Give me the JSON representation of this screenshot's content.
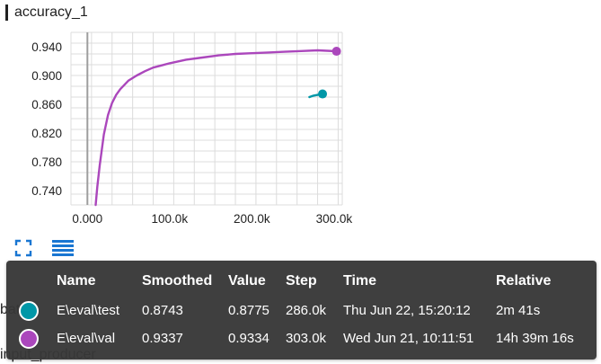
{
  "card": {
    "title": "accuracy_1"
  },
  "chart_data": {
    "type": "line",
    "x_ticks": [
      "0.000",
      "100.0k",
      "200.0k",
      "300.0k"
    ],
    "y_ticks": [
      "0.740",
      "0.780",
      "0.820",
      "0.860",
      "0.900",
      "0.940"
    ],
    "xlim": [
      -20000,
      310000
    ],
    "ylim": [
      0.72,
      0.96
    ],
    "grid": true,
    "cursor_x": 0,
    "series": [
      {
        "name": "E\\eval\\val",
        "color": "#ab47bc",
        "x": [
          10000,
          12000,
          15000,
          20000,
          25000,
          30000,
          35000,
          40000,
          50000,
          60000,
          70000,
          80000,
          90000,
          100000,
          120000,
          140000,
          160000,
          180000,
          200000,
          220000,
          240000,
          260000,
          280000,
          303000
        ],
        "y": [
          0.72,
          0.745,
          0.775,
          0.818,
          0.845,
          0.862,
          0.873,
          0.881,
          0.893,
          0.9,
          0.906,
          0.911,
          0.914,
          0.917,
          0.922,
          0.925,
          0.928,
          0.93,
          0.931,
          0.932,
          0.933,
          0.934,
          0.935,
          0.9337
        ]
      },
      {
        "name": "E\\eval\\test",
        "color": "#0097a7",
        "x": [
          270000,
          275000,
          280000,
          286000
        ],
        "y": [
          0.87,
          0.872,
          0.873,
          0.8743
        ]
      }
    ]
  },
  "controls": {
    "expand_icon": "fullscreen-icon",
    "menu_icon": "list-icon",
    "accent": "#1976d2"
  },
  "behind_text": {
    "line1": "batch",
    "line2": "input_producer"
  },
  "tooltip": {
    "headers": {
      "name": "Name",
      "smoothed": "Smoothed",
      "value": "Value",
      "step": "Step",
      "time": "Time",
      "relative": "Relative"
    },
    "rows": [
      {
        "name": "E\\eval\\test",
        "smoothed": "0.8743",
        "value": "0.8775",
        "step": "286.0k",
        "time": "Thu Jun 22, 15:20:12",
        "relative": "2m 41s",
        "color": "#0097a7"
      },
      {
        "name": "E\\eval\\val",
        "smoothed": "0.9337",
        "value": "0.9334",
        "step": "303.0k",
        "time": "Wed Jun 21, 10:11:51",
        "relative": "14h 39m 16s",
        "color": "#ab47bc"
      }
    ]
  }
}
